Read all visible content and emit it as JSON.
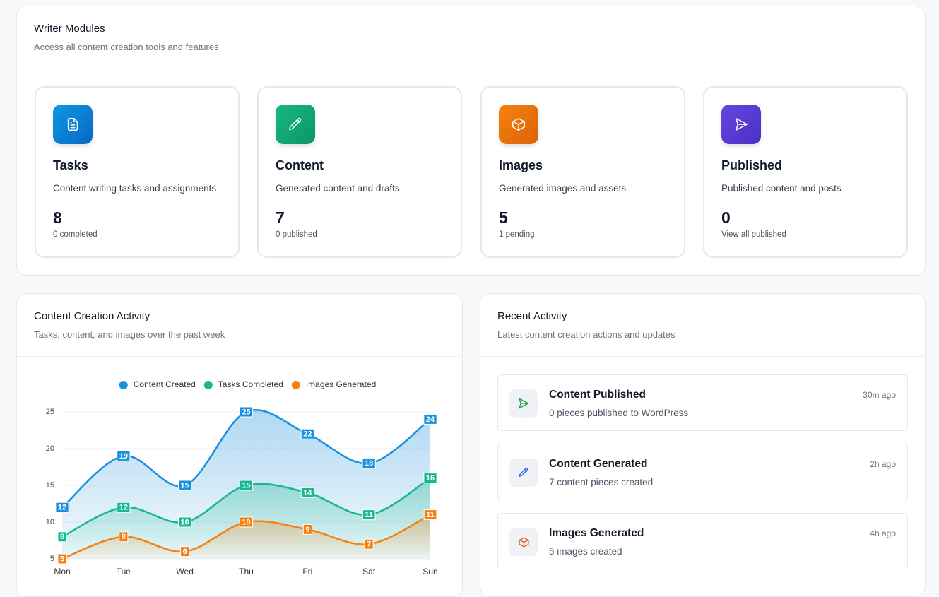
{
  "modules": {
    "title": "Writer Modules",
    "subtitle": "Access all content creation tools and features",
    "cards": [
      {
        "title": "Tasks",
        "description": "Content writing tasks and assignments",
        "count": 8,
        "note": "0 completed"
      },
      {
        "title": "Content",
        "description": "Generated content and drafts",
        "count": 7,
        "note": "0 published"
      },
      {
        "title": "Images",
        "description": "Generated images and assets",
        "count": 5,
        "note": "1 pending"
      },
      {
        "title": "Published",
        "description": "Published content and posts",
        "count": 0,
        "note": "View all published"
      }
    ]
  },
  "chart_data": {
    "type": "line",
    "title": "Content Creation Activity",
    "subtitle": "Tasks, content, and images over the past week",
    "categories": [
      "Mon",
      "Tue",
      "Wed",
      "Thu",
      "Fri",
      "Sat",
      "Sun"
    ],
    "series": [
      {
        "name": "Content Created",
        "color": "#1a8fdb",
        "values": [
          12,
          19,
          15,
          25,
          22,
          18,
          24
        ]
      },
      {
        "name": "Tasks Completed",
        "color": "#17b890",
        "values": [
          8,
          12,
          10,
          15,
          14,
          11,
          16
        ]
      },
      {
        "name": "Images Generated",
        "color": "#f5800f",
        "values": [
          5,
          8,
          6,
          10,
          9,
          7,
          11
        ]
      }
    ],
    "ylim": [
      5,
      25
    ],
    "yticks": [
      5,
      10,
      15,
      20,
      25
    ],
    "grid": true,
    "legend": "top"
  },
  "recent_activity": {
    "title": "Recent Activity",
    "subtitle": "Latest content creation actions and updates",
    "items": [
      {
        "title": "Content Published",
        "description": "0 pieces published to WordPress",
        "time": "30m ago"
      },
      {
        "title": "Content Generated",
        "description": "7 content pieces created",
        "time": "2h ago"
      },
      {
        "title": "Images Generated",
        "description": "5 images created",
        "time": "4h ago"
      }
    ]
  }
}
